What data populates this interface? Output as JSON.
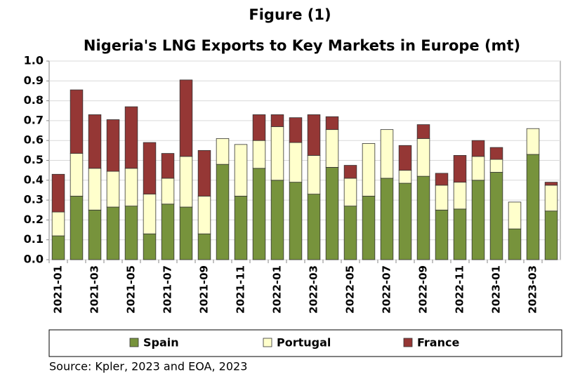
{
  "chart_data": {
    "type": "stacked_bar",
    "figure_label": "Figure (1)",
    "title": "Nigeria's LNG Exports to Key Markets in Europe (mt)",
    "source": "Source: Kpler, 2023 and EOA, 2023",
    "categories": [
      "2021-01",
      null,
      "2021-03",
      null,
      "2021-05",
      null,
      "2021-07",
      null,
      "2021-09",
      null,
      "2021-11",
      null,
      "2022-01",
      null,
      "2022-03",
      null,
      "2022-05",
      null,
      "2022-07",
      null,
      "2022-09",
      null,
      "2022-11",
      null,
      "2023-01",
      null,
      "2023-03",
      null
    ],
    "series": [
      {
        "name": "Spain",
        "color": "#77933c",
        "values": [
          0.12,
          0.32,
          0.25,
          0.265,
          0.27,
          0.13,
          0.28,
          0.265,
          0.13,
          0.48,
          0.32,
          0.46,
          0.4,
          0.39,
          0.33,
          0.465,
          0.27,
          0.32,
          0.41,
          0.385,
          0.42,
          0.25,
          0.255,
          0.4,
          0.44,
          0.155,
          0.53,
          0.245
        ]
      },
      {
        "name": "Portugal",
        "color": "#ffffcc",
        "values": [
          0.12,
          0.215,
          0.21,
          0.18,
          0.19,
          0.2,
          0.13,
          0.255,
          0.19,
          0.13,
          0.26,
          0.14,
          0.27,
          0.2,
          0.195,
          0.19,
          0.14,
          0.265,
          0.245,
          0.065,
          0.19,
          0.125,
          0.135,
          0.12,
          0.065,
          0.135,
          0.13,
          0.13
        ]
      },
      {
        "name": "France",
        "color": "#953735",
        "values": [
          0.19,
          0.32,
          0.27,
          0.26,
          0.31,
          0.26,
          0.125,
          0.385,
          0.23,
          0,
          0,
          0.13,
          0.06,
          0.125,
          0.205,
          0.065,
          0.065,
          0,
          0,
          0.125,
          0.07,
          0.06,
          0.135,
          0.08,
          0.06,
          0,
          0,
          0.015
        ]
      }
    ],
    "ylim": [
      0,
      1
    ],
    "yticks": [
      {
        "value": 0,
        "label": "0.0"
      },
      0.1,
      0.2,
      0.3,
      0.4,
      0.5,
      0.6,
      0.7,
      0.8,
      0.9,
      {
        "value": 1,
        "label": "1.0"
      }
    ],
    "grid": true
  }
}
